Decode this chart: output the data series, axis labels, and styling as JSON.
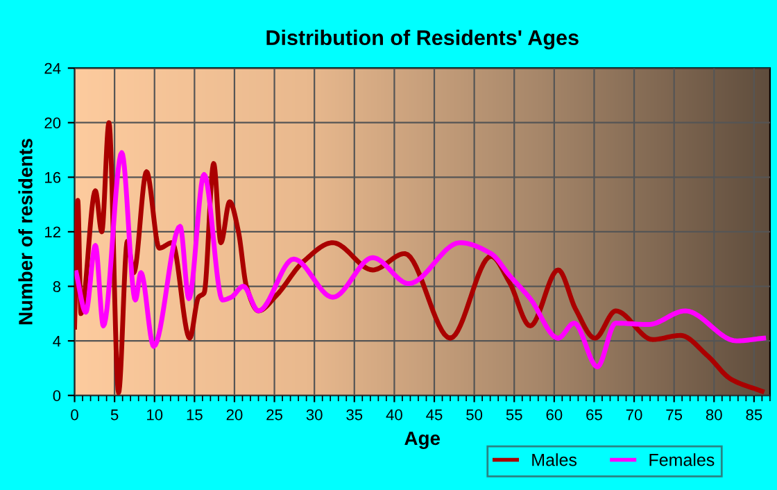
{
  "chart_data": {
    "type": "line",
    "title": "Distribution of Residents' Ages",
    "xlabel": "Age",
    "ylabel": "Number of residents",
    "xlim": [
      0,
      87
    ],
    "xticks": [
      0,
      5,
      10,
      15,
      20,
      25,
      30,
      35,
      40,
      45,
      50,
      55,
      60,
      65,
      70,
      75,
      80,
      85
    ],
    "ylim": [
      0,
      24
    ],
    "yticks": [
      0,
      4,
      8,
      12,
      16,
      20,
      24
    ],
    "grid": true,
    "legend": "bottom right",
    "line_style": "solid",
    "marker": "none",
    "series": [
      {
        "name": "Males",
        "color": "#aa0000",
        "x": [
          0,
          0.4,
          0.8,
          2.6,
          3.4,
          4.3,
          5.5,
          6.6,
          7.4,
          9.0,
          10.6,
          12.2,
          14.4,
          15.5,
          16.2,
          17.4,
          18.3,
          19.4,
          20.5,
          21.5,
          23,
          25.2,
          28.6,
          32.3,
          37.3,
          41.3,
          47,
          52.1,
          54.4,
          57,
          60.5,
          62.7,
          65.1,
          67.7,
          72.3,
          75.8,
          79.2,
          82.1,
          86
        ],
        "values": [
          5,
          14.3,
          6,
          15,
          12,
          20,
          0.2,
          11.3,
          9,
          16.4,
          10.8,
          11.2,
          4.2,
          7.2,
          7.5,
          17,
          11.2,
          14.2,
          12,
          8,
          6.2,
          7.3,
          9.8,
          11.2,
          9.2,
          10.4,
          4.2,
          10.2,
          8.3,
          5.1,
          9.2,
          6.3,
          4.2,
          6.2,
          4.1,
          4.4,
          2.9,
          1.2,
          0.3
        ]
      },
      {
        "name": "Females",
        "color": "#ff00ff",
        "x": [
          0.2,
          1.4,
          2.6,
          3.6,
          5.9,
          7.6,
          8.3,
          9.9,
          13.2,
          14.3,
          16.2,
          18.5,
          19.6,
          21.1,
          23,
          27.4,
          32.3,
          37.3,
          41.8,
          48.2,
          52.1,
          54.4,
          57,
          60.5,
          62.5,
          65.4,
          67.7,
          71.8,
          76.4,
          82.8,
          86.2
        ],
        "values": [
          9,
          6.1,
          11,
          5.1,
          17.8,
          7,
          9,
          3.6,
          12.4,
          7.1,
          16.2,
          7,
          7.2,
          8,
          6.2,
          10,
          7.2,
          10.1,
          8.2,
          11.2,
          10.4,
          8.8,
          7.1,
          4.2,
          5.3,
          2.1,
          5.3,
          5.2,
          6.2,
          4.0,
          4.2
        ]
      }
    ]
  }
}
